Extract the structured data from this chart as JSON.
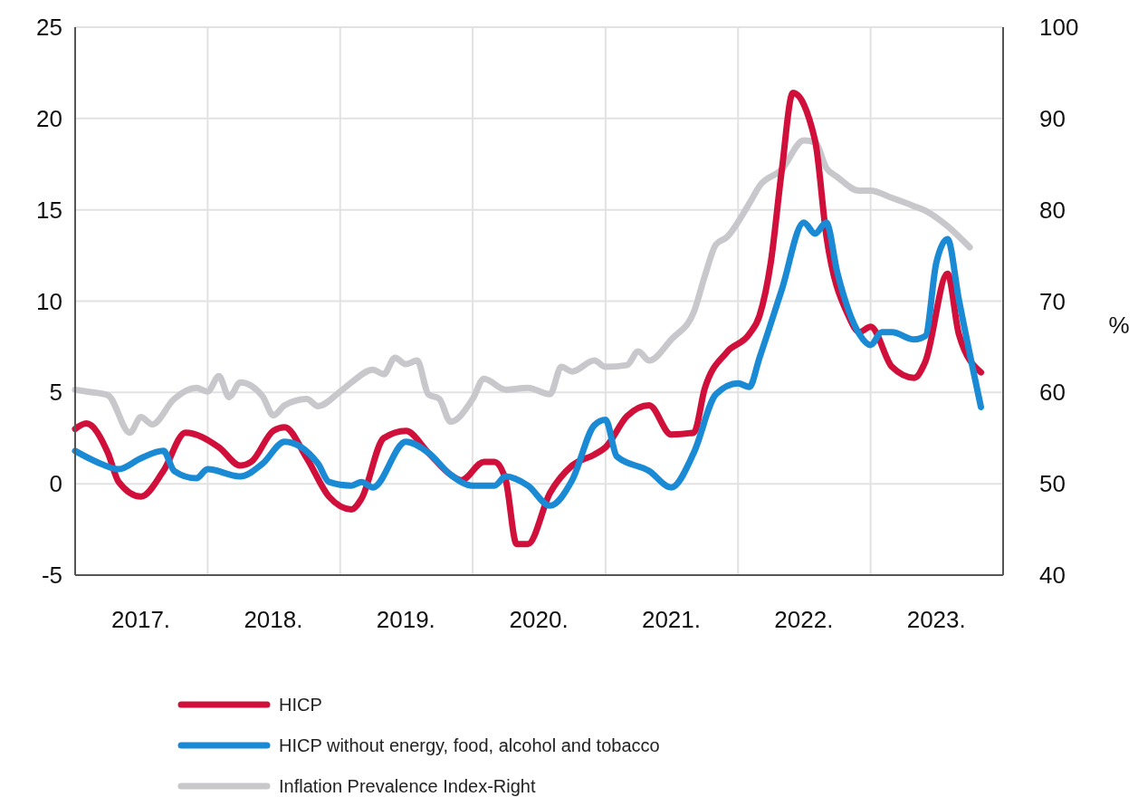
{
  "chart_data": {
    "type": "line",
    "y2label": "%",
    "legend": "bottom",
    "grid": true,
    "xlim": [
      "2017-01",
      "2024-01"
    ],
    "xticks": [
      {
        "value": "2017-01",
        "label": null
      },
      {
        "value": "2017-07",
        "label": "2017."
      },
      {
        "value": "2018-01",
        "label": null
      },
      {
        "value": "2018-07",
        "label": "2018."
      },
      {
        "value": "2019-01",
        "label": null
      },
      {
        "value": "2019-07",
        "label": "2019."
      },
      {
        "value": "2020-01",
        "label": null
      },
      {
        "value": "2020-07",
        "label": "2020."
      },
      {
        "value": "2021-01",
        "label": null
      },
      {
        "value": "2021-07",
        "label": "2021."
      },
      {
        "value": "2022-01",
        "label": null
      },
      {
        "value": "2022-07",
        "label": "2022."
      },
      {
        "value": "2023-01",
        "label": null
      },
      {
        "value": "2023-07",
        "label": "2023."
      },
      {
        "value": "2024-01",
        "label": null
      }
    ],
    "ylim": [
      -5,
      25
    ],
    "yticks": [
      -5,
      0,
      5,
      10,
      15,
      20,
      25
    ],
    "y2lim": [
      40,
      100
    ],
    "y2ticks": [
      40,
      50,
      60,
      70,
      80,
      90,
      100
    ],
    "series": [
      {
        "name": "HICP",
        "color": "#d0103a",
        "x": [
          "2017-01",
          "2017-02",
          "2017-04",
          "2017-05",
          "2017-07",
          "2017-09",
          "2017-11",
          "2018-02",
          "2018-04",
          "2018-05",
          "2018-07",
          "2018-08",
          "2018-10",
          "2018-12",
          "2019-02",
          "2019-03",
          "2019-05",
          "2019-07",
          "2019-09",
          "2019-11",
          "2019-12",
          "2020-02",
          "2020-03",
          "2020-04",
          "2020-05",
          "2020-06",
          "2020-08",
          "2020-10",
          "2020-12",
          "2021-01",
          "2021-03",
          "2021-05",
          "2021-07",
          "2021-09",
          "2021-10",
          "2021-12",
          "2022-02",
          "2022-03",
          "2022-04",
          "2022-05",
          "2022-06",
          "2022-08",
          "2022-09",
          "2022-11",
          "2022-12",
          "2023-01",
          "2023-03",
          "2023-05",
          "2023-06",
          "2023-08",
          "2023-09",
          "2023-11"
        ],
        "values": [
          3.0,
          3.3,
          1.7,
          0.1,
          -0.7,
          0.7,
          2.8,
          2.0,
          1.0,
          1.2,
          2.9,
          3.1,
          1.4,
          -0.7,
          -1.4,
          -0.8,
          2.5,
          2.9,
          1.7,
          0.5,
          0.2,
          1.2,
          1.2,
          0.2,
          -3.3,
          -3.3,
          -0.5,
          1.0,
          1.6,
          2.0,
          3.7,
          4.3,
          2.7,
          2.8,
          5.2,
          7.2,
          8.2,
          9.2,
          12.1,
          17.1,
          21.4,
          18.8,
          13.6,
          9.2,
          8.3,
          8.6,
          6.4,
          5.8,
          6.7,
          11.5,
          8.2,
          6.1
        ]
      },
      {
        "name": "HICP without energy, food, alcohol and tobacco",
        "color": "#1a8ad4",
        "x": [
          "2017-01",
          "2017-03",
          "2017-05",
          "2017-07",
          "2017-09",
          "2017-10",
          "2017-12",
          "2018-01",
          "2018-04",
          "2018-06",
          "2018-08",
          "2018-11",
          "2018-12",
          "2019-02",
          "2019-03",
          "2019-04",
          "2019-07",
          "2019-09",
          "2019-11",
          "2020-01",
          "2020-03",
          "2020-04",
          "2020-06",
          "2020-08",
          "2020-10",
          "2020-12",
          "2021-01",
          "2021-02",
          "2021-05",
          "2021-07",
          "2021-09",
          "2021-11",
          "2022-01",
          "2022-02",
          "2022-03",
          "2022-05",
          "2022-07",
          "2022-08",
          "2022-09",
          "2022-10",
          "2022-12",
          "2023-01",
          "2023-02",
          "2023-03",
          "2023-05",
          "2023-06",
          "2023-07",
          "2023-08",
          "2023-09",
          "2023-11"
        ],
        "values": [
          1.8,
          1.2,
          0.8,
          1.4,
          1.8,
          0.7,
          0.3,
          0.8,
          0.4,
          1.1,
          2.3,
          1.1,
          0.1,
          -0.1,
          0.1,
          -0.2,
          2.3,
          1.7,
          0.5,
          -0.1,
          -0.1,
          0.4,
          -0.1,
          -1.2,
          0.2,
          3.2,
          3.5,
          1.5,
          0.7,
          -0.2,
          1.7,
          4.9,
          5.5,
          5.3,
          6.9,
          10.6,
          14.3,
          13.7,
          14.3,
          11.6,
          8.2,
          7.6,
          8.3,
          8.3,
          7.9,
          8.1,
          12.1,
          13.4,
          10.1,
          4.2
        ]
      },
      {
        "name": "Inflation Prevalence Index-Right",
        "color": "#c8c8cc",
        "axis": "y2",
        "x": [
          "2017-01",
          "2017-02",
          "2017-04",
          "2017-06",
          "2017-07",
          "2017-08",
          "2017-10",
          "2017-12",
          "2018-01",
          "2018-02",
          "2018-03",
          "2018-04",
          "2018-06",
          "2018-07",
          "2018-08",
          "2018-10",
          "2018-11",
          "2019-01",
          "2019-02",
          "2019-04",
          "2019-05",
          "2019-06",
          "2019-07",
          "2019-08",
          "2019-09",
          "2019-10",
          "2019-11",
          "2020-01",
          "2020-02",
          "2020-04",
          "2020-06",
          "2020-08",
          "2020-09",
          "2020-10",
          "2020-12",
          "2021-01",
          "2021-03",
          "2021-04",
          "2021-05",
          "2021-07",
          "2021-09",
          "2021-10",
          "2021-11",
          "2021-12",
          "2022-02",
          "2022-03",
          "2022-05",
          "2022-07",
          "2022-08",
          "2022-09",
          "2022-10",
          "2022-12",
          "2023-01",
          "2023-03",
          "2023-05",
          "2023-06",
          "2023-08",
          "2023-10"
        ],
        "values": [
          60.3,
          60.1,
          59.7,
          55.6,
          57.3,
          56.5,
          59.3,
          60.5,
          60.1,
          61.8,
          59.5,
          61.1,
          59.6,
          57.5,
          58.6,
          59.3,
          58.5,
          60.1,
          61.1,
          62.5,
          62,
          63.8,
          63.1,
          63.5,
          59.8,
          59.3,
          56.8,
          59.3,
          61.5,
          60.3,
          60.5,
          59.8,
          62.8,
          62.3,
          63.5,
          62.8,
          63,
          64.5,
          63.5,
          65.8,
          68.8,
          72.7,
          76.2,
          77,
          80.7,
          82.6,
          84.4,
          87.6,
          87.4,
          84.6,
          83.6,
          82.1,
          82.1,
          81.3,
          80.4,
          79.9,
          78.2,
          75.9
        ]
      }
    ]
  }
}
